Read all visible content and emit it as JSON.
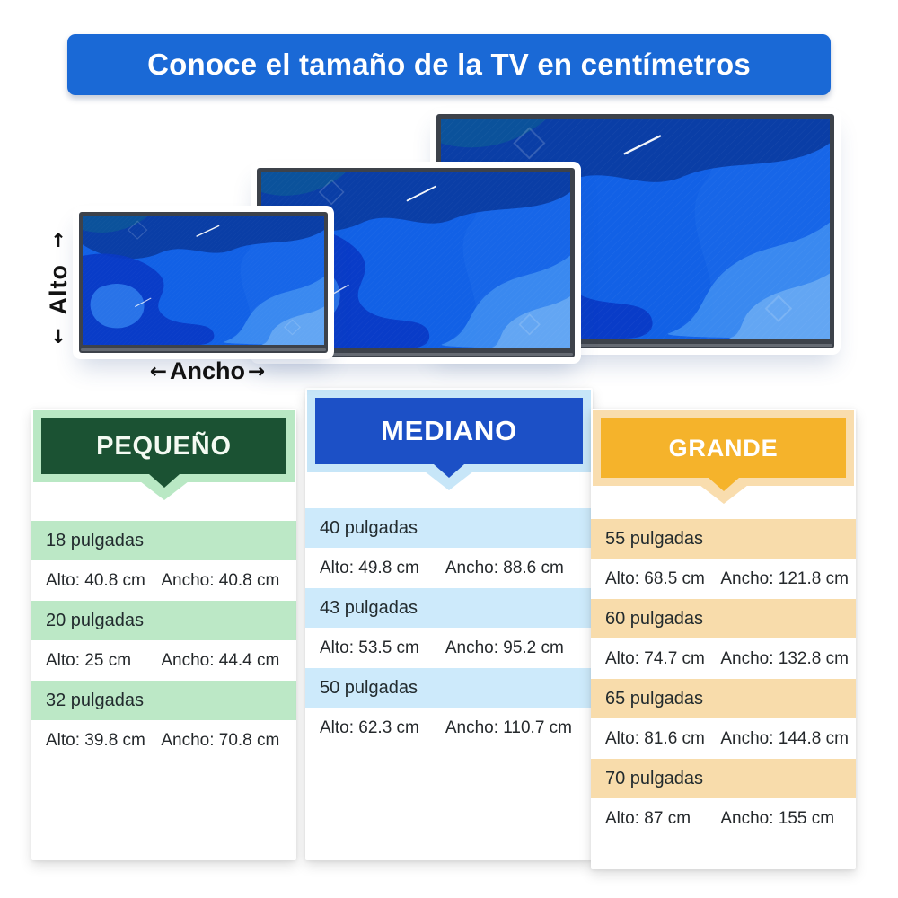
{
  "header": {
    "title": "Conoce el tamaño de la TV en centímetros",
    "bg_color": "#1a69d6",
    "text_color": "#ffffff"
  },
  "diagram": {
    "alto_label": "Alto",
    "ancho_label": "Ancho",
    "arrow_up": "↑",
    "arrow_down": "↓",
    "arrow_left": "←",
    "arrow_right": "→",
    "screen_color": "#1261e6",
    "bezel_color": "#3d424a"
  },
  "columns": [
    {
      "id": "pequeno",
      "title": "PEQUEÑO",
      "colors": {
        "plaque": "#1b5233",
        "plaque_border": "#b9e8c4",
        "row_band": "#bce8c6",
        "title_text": "#f4faf2"
      },
      "rows": [
        {
          "size": "18 pulgadas",
          "alto": "Alto: 40.8 cm",
          "ancho": "Ancho: 40.8 cm"
        },
        {
          "size": "20 pulgadas",
          "alto": "Alto: 25 cm",
          "ancho": "Ancho: 44.4 cm"
        },
        {
          "size": "32 pulgadas",
          "alto": "Alto: 39.8 cm",
          "ancho": "Ancho: 70.8 cm"
        }
      ]
    },
    {
      "id": "mediano",
      "title": "MEDIANO",
      "colors": {
        "plaque": "#1c50c6",
        "plaque_border": "#c7e6f8",
        "row_band": "#cdeafb",
        "title_text": "#ffffff"
      },
      "rows": [
        {
          "size": "40 pulgadas",
          "alto": "Alto: 49.8 cm",
          "ancho": "Ancho: 88.6 cm"
        },
        {
          "size": "43 pulgadas",
          "alto": "Alto: 53.5 cm",
          "ancho": "Ancho: 95.2 cm"
        },
        {
          "size": "50 pulgadas",
          "alto": "Alto: 62.3 cm",
          "ancho": "Ancho: 110.7 cm"
        }
      ]
    },
    {
      "id": "grande",
      "title": "GRANDE",
      "colors": {
        "plaque": "#f5b32b",
        "plaque_border": "#f9ddae",
        "row_band": "#f8dcab",
        "title_text": "#ffffff"
      },
      "rows": [
        {
          "size": "55 pulgadas",
          "alto": "Alto: 68.5 cm",
          "ancho": "Ancho: 121.8 cm"
        },
        {
          "size": "60 pulgadas",
          "alto": "Alto: 74.7 cm",
          "ancho": "Ancho: 132.8 cm"
        },
        {
          "size": "65 pulgadas",
          "alto": "Alto: 81.6 cm",
          "ancho": "Ancho: 144.8 cm"
        },
        {
          "size": "70 pulgadas",
          "alto": "Alto: 87 cm",
          "ancho": "Ancho: 155 cm"
        }
      ]
    }
  ]
}
